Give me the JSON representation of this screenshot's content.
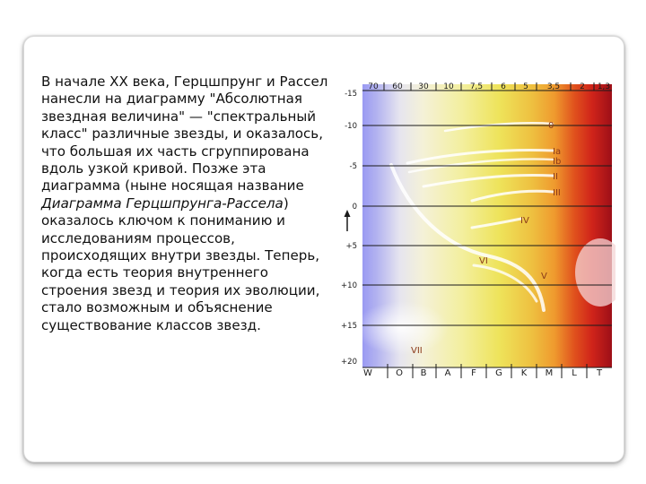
{
  "slide": {
    "paragraph": {
      "before_italic": "В начале XX века, Герцшпрунг и Рассел нанесли на диаграмму \"Абсолютная звездная величина\" — \"спектральный класс\" различные звезды, и оказалось, что большая их часть сгруппирована вдоль узкой кривой. Позже эта диаграмма (ныне носящая название ",
      "italic": "Диаграмма Герцшпрунга-Рассела",
      "after_italic": ") оказалось ключом к пониманию и исследованиям процессов, происходящих внутри звезды. Теперь, когда есть теория внутреннего строения звезд и теория их эволюции, стало возможным и объяснение существование классов звезд."
    }
  },
  "diagram": {
    "top_labels": [
      "70",
      "60",
      "30",
      "10",
      "7,5",
      "6",
      "5",
      "3,5",
      "2",
      "1,3"
    ],
    "magnitude_labels": [
      "-15",
      "-10",
      "-5",
      "0",
      "+5",
      "+10",
      "+15",
      "+20"
    ],
    "spectral_classes": [
      "W",
      "O",
      "B",
      "A",
      "F",
      "G",
      "K",
      "M",
      "L",
      "T"
    ],
    "luminosity_classes": [
      "0",
      "Ia",
      "Ib",
      "II",
      "III",
      "IV",
      "V",
      "VI",
      "VII"
    ],
    "colors": {
      "hot_blue": "#9a9af2",
      "white": "#f4f1d8",
      "yellow": "#eee35a",
      "orange": "#ef9a2e",
      "red": "#d0241a",
      "dark_red": "#9d0f18",
      "roman_label": "#8b3a1a"
    }
  }
}
